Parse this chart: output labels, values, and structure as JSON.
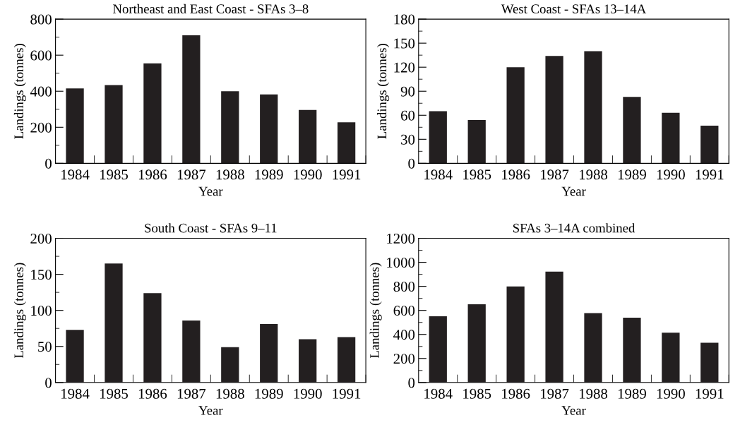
{
  "chart_data": [
    {
      "type": "bar",
      "title": "Northeast and East Coast - SFAs 3–8",
      "xlabel": "Year",
      "ylabel": "Landings (tonnes)",
      "categories": [
        "1984",
        "1985",
        "1986",
        "1987",
        "1988",
        "1989",
        "1990",
        "1991"
      ],
      "values": [
        416,
        434,
        555,
        710,
        400,
        382,
        296,
        228
      ],
      "color": "#231f20",
      "ylim": [
        0,
        800
      ],
      "yticks": [
        0,
        {
          "value": 100,
          "label": null
        },
        200,
        {
          "value": 300,
          "label": null
        },
        400,
        {
          "value": 500,
          "label": null
        },
        600,
        {
          "value": 700,
          "label": null
        },
        800
      ],
      "grid": false,
      "legend": false
    },
    {
      "type": "bar",
      "title": "West Coast - SFAs 13–14A",
      "xlabel": "Year",
      "ylabel": "Landings (tonnes)",
      "categories": [
        "1984",
        "1985",
        "1986",
        "1987",
        "1988",
        "1989",
        "1990",
        "1991"
      ],
      "values": [
        65,
        54,
        120,
        134,
        140,
        83,
        63,
        47
      ],
      "color": "#231f20",
      "ylim": [
        0,
        180
      ],
      "yticks": [
        0,
        {
          "value": 15,
          "label": null
        },
        30,
        {
          "value": 45,
          "label": null
        },
        60,
        {
          "value": 75,
          "label": null
        },
        90,
        {
          "value": 105,
          "label": null
        },
        120,
        {
          "value": 135,
          "label": null
        },
        150,
        {
          "value": 165,
          "label": null
        },
        180
      ],
      "grid": false,
      "legend": false
    },
    {
      "type": "bar",
      "title": "South Coast - SFAs 9–11",
      "xlabel": "Year",
      "ylabel": "Landings (tonnes)",
      "categories": [
        "1984",
        "1985",
        "1986",
        "1987",
        "1988",
        "1989",
        "1990",
        "1991"
      ],
      "values": [
        73,
        165,
        124,
        86,
        49,
        81,
        60,
        63
      ],
      "color": "#231f20",
      "ylim": [
        0,
        200
      ],
      "yticks": [
        0,
        {
          "value": 25,
          "label": null
        },
        50,
        {
          "value": 75,
          "label": null
        },
        100,
        {
          "value": 125,
          "label": null
        },
        150,
        {
          "value": 175,
          "label": null
        },
        200
      ],
      "grid": false,
      "legend": false
    },
    {
      "type": "bar",
      "title": "SFAs 3–14A combined",
      "xlabel": "Year",
      "ylabel": "Landings (tonnes)",
      "categories": [
        "1984",
        "1985",
        "1986",
        "1987",
        "1988",
        "1989",
        "1990",
        "1991"
      ],
      "values": [
        551,
        651,
        799,
        922,
        577,
        539,
        415,
        331
      ],
      "color": "#231f20",
      "ylim": [
        0,
        1200
      ],
      "yticks": [
        0,
        {
          "value": 100,
          "label": null
        },
        200,
        {
          "value": 300,
          "label": null
        },
        400,
        {
          "value": 500,
          "label": null
        },
        600,
        {
          "value": 700,
          "label": null
        },
        800,
        {
          "value": 900,
          "label": null
        },
        1000,
        {
          "value": 1100,
          "label": null
        },
        1200
      ],
      "grid": false,
      "legend": false
    }
  ]
}
